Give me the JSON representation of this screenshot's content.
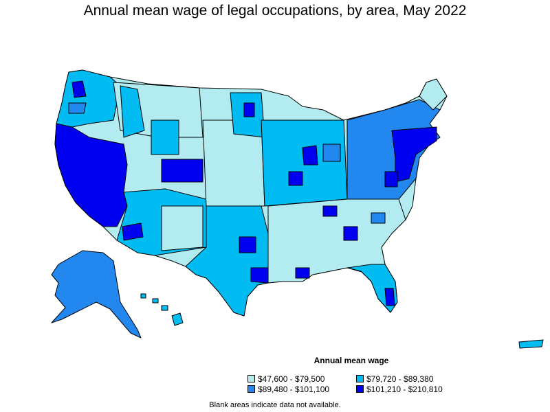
{
  "title": "Annual mean wage of legal occupations, by area, May 2022",
  "legend": {
    "title": "Annual mean wage",
    "items": [
      {
        "label": "$47,600 - $79,500",
        "color": "#b3ecf0"
      },
      {
        "label": "$79,720 - $89,380",
        "color": "#00bcf2"
      },
      {
        "label": "$89,480 - $101,100",
        "color": "#2288f0"
      },
      {
        "label": "$101,210 - $210,810",
        "color": "#0000f0"
      }
    ]
  },
  "note": "Blank areas indicate data not available."
}
